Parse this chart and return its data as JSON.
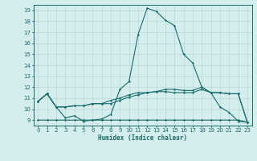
{
  "bg_color": "#d4eeed",
  "line_color": "#1a6b6b",
  "grid_color": "#b8d8d4",
  "xlabel": "Humidex (Indice chaleur)",
  "xlim": [
    -0.5,
    23.5
  ],
  "ylim": [
    8.5,
    19.5
  ],
  "xticks": [
    0,
    1,
    2,
    3,
    4,
    5,
    6,
    7,
    8,
    9,
    10,
    11,
    12,
    13,
    14,
    15,
    16,
    17,
    18,
    19,
    20,
    21,
    22,
    23
  ],
  "yticks": [
    9,
    10,
    11,
    12,
    13,
    14,
    15,
    16,
    17,
    18,
    19
  ],
  "line1_x": [
    0,
    1,
    2,
    3,
    4,
    5,
    6,
    7,
    8,
    9,
    10,
    11,
    12,
    13,
    14,
    15,
    16,
    17,
    18,
    19,
    20,
    21,
    22,
    23
  ],
  "line1_y": [
    10.7,
    11.4,
    10.2,
    9.2,
    9.4,
    8.9,
    9.0,
    9.1,
    9.5,
    11.8,
    12.5,
    16.8,
    19.2,
    18.9,
    18.1,
    17.6,
    15.0,
    14.2,
    12.0,
    11.5,
    10.2,
    9.7,
    8.9,
    8.8
  ],
  "line2_x": [
    0,
    1,
    2,
    3,
    4,
    5,
    6,
    7,
    8,
    9,
    10,
    11,
    12,
    13,
    14,
    15,
    16,
    17,
    18,
    19,
    20,
    21,
    22,
    23
  ],
  "line2_y": [
    10.7,
    11.4,
    10.2,
    10.2,
    10.3,
    10.3,
    10.5,
    10.5,
    10.5,
    10.8,
    11.1,
    11.3,
    11.5,
    11.6,
    11.6,
    11.5,
    11.5,
    11.5,
    11.8,
    11.5,
    11.5,
    11.4,
    11.4,
    8.8
  ],
  "line3_x": [
    0,
    1,
    2,
    3,
    4,
    5,
    6,
    7,
    8,
    9,
    10,
    11,
    12,
    13,
    14,
    15,
    16,
    17,
    18,
    19,
    20,
    21,
    22,
    23
  ],
  "line3_y": [
    10.7,
    11.4,
    10.2,
    10.2,
    10.3,
    10.3,
    10.5,
    10.5,
    10.8,
    11.0,
    11.3,
    11.5,
    11.5,
    11.6,
    11.8,
    11.8,
    11.7,
    11.7,
    12.0,
    11.5,
    11.5,
    11.4,
    11.4,
    8.8
  ],
  "line4_x": [
    0,
    1,
    2,
    3,
    4,
    5,
    6,
    7,
    8,
    9,
    10,
    11,
    12,
    13,
    14,
    15,
    16,
    17,
    18,
    19,
    20,
    21,
    22,
    23
  ],
  "line4_y": [
    9.0,
    9.0,
    9.0,
    9.0,
    9.0,
    9.0,
    9.0,
    9.0,
    9.0,
    9.0,
    9.0,
    9.0,
    9.0,
    9.0,
    9.0,
    9.0,
    9.0,
    9.0,
    9.0,
    9.0,
    9.0,
    9.0,
    9.0,
    8.8
  ]
}
